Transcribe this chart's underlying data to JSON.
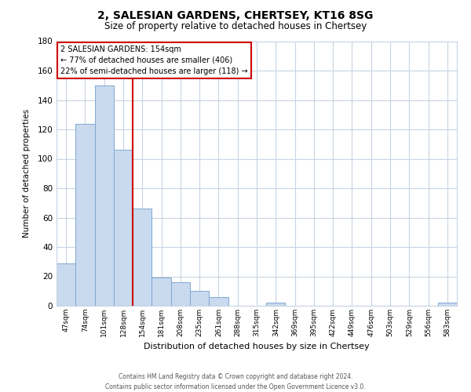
{
  "title": "2, SALESIAN GARDENS, CHERTSEY, KT16 8SG",
  "subtitle": "Size of property relative to detached houses in Chertsey",
  "xlabel": "Distribution of detached houses by size in Chertsey",
  "ylabel": "Number of detached properties",
  "bar_labels": [
    "47sqm",
    "74sqm",
    "101sqm",
    "128sqm",
    "154sqm",
    "181sqm",
    "208sqm",
    "235sqm",
    "261sqm",
    "288sqm",
    "315sqm",
    "342sqm",
    "369sqm",
    "395sqm",
    "422sqm",
    "449sqm",
    "476sqm",
    "503sqm",
    "529sqm",
    "556sqm",
    "583sqm"
  ],
  "bar_values": [
    29,
    124,
    150,
    106,
    66,
    19,
    16,
    10,
    6,
    0,
    0,
    2,
    0,
    0,
    0,
    0,
    0,
    0,
    0,
    0,
    2
  ],
  "bar_color": "#c9d9ee",
  "bar_edge_color": "#7fa8d0",
  "vline_color": "#cc0000",
  "ylim": [
    0,
    180
  ],
  "yticks": [
    0,
    20,
    40,
    60,
    80,
    100,
    120,
    140,
    160,
    180
  ],
  "annotation_title": "2 SALESIAN GARDENS: 154sqm",
  "annotation_line1": "← 77% of detached houses are smaller (406)",
  "annotation_line2": "22% of semi-detached houses are larger (118) →",
  "footer1": "Contains HM Land Registry data © Crown copyright and database right 2024.",
  "footer2": "Contains public sector information licensed under the Open Government Licence v3.0.",
  "background_color": "#ffffff",
  "grid_color": "#c8d4e4"
}
